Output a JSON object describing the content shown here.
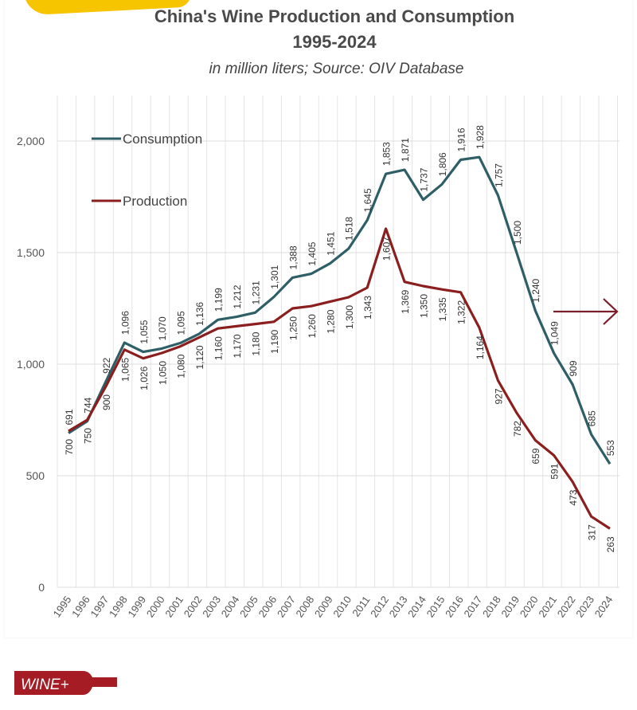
{
  "header": {
    "title_line1": "China's Wine Production and Consumption",
    "title_line2": "1995-2024",
    "subtitle": "in million liters; Source: OIV Database"
  },
  "logo": {
    "text": "WINE+",
    "color": "#a51c24"
  },
  "colors": {
    "consumption": "#2f5f66",
    "production": "#8b1f1f",
    "accent": "#f7c400",
    "arrow": "#7a1f2b"
  },
  "chart_data": {
    "type": "line",
    "title": "China's Wine Production and Consumption 1995-2024",
    "subtitle": "in million liters; Source: OIV Database",
    "xlabel": "",
    "ylabel": "",
    "ylim": [
      0,
      2000
    ],
    "yticks": [
      0,
      500,
      1000,
      1500,
      2000
    ],
    "ytick_labels": [
      "0",
      "500",
      "1,000",
      "1,500",
      "2,000"
    ],
    "grid": true,
    "legend_position": "top-left",
    "x": [
      "1995",
      "1996",
      "1997",
      "1998",
      "1999",
      "2000",
      "2001",
      "2002",
      "2003",
      "2004",
      "2005",
      "2006",
      "2007",
      "2008",
      "2009",
      "2010",
      "2011",
      "2012",
      "2013",
      "2014",
      "2015",
      "2016",
      "2017",
      "2018",
      "2019",
      "2020",
      "2021",
      "2022",
      "2023",
      "2024"
    ],
    "series": [
      {
        "name": "Consumption",
        "color": "#2f5f66",
        "values": [
          691,
          744,
          922,
          1096,
          1055,
          1070,
          1095,
          1136,
          1199,
          1212,
          1231,
          1301,
          1388,
          1405,
          1451,
          1518,
          1645,
          1853,
          1871,
          1737,
          1806,
          1916,
          1928,
          1757,
          1500,
          1240,
          1049,
          909,
          685,
          553
        ],
        "labels": [
          "691",
          "744",
          "922",
          "1,096",
          "1,055",
          "1,070",
          "1,095",
          "1,136",
          "1,199",
          "1,212",
          "1,231",
          "1,301",
          "1,388",
          "1,405",
          "1,451",
          "1,518",
          "1,645",
          "1,853",
          "1,871",
          "1,737",
          "1,806",
          "1,916",
          "1,928",
          "1,757",
          "1,500",
          "1,240",
          "1,049",
          "909",
          "685",
          "553"
        ]
      },
      {
        "name": "Production",
        "color": "#8b1f1f",
        "values": [
          700,
          750,
          900,
          1065,
          1026,
          1050,
          1080,
          1120,
          1160,
          1170,
          1180,
          1190,
          1250,
          1260,
          1280,
          1300,
          1343,
          1607,
          1369,
          1350,
          1335,
          1322,
          1164,
          927,
          782,
          659,
          591,
          473,
          317,
          263
        ],
        "labels": [
          "700",
          "750",
          "900",
          "1,065",
          "1,026",
          "1,050",
          "1,080",
          "1,120",
          "1,160",
          "1,170",
          "1,180",
          "1,190",
          "1,250",
          "1,260",
          "1,280",
          "1,300",
          "1,343",
          "1,607",
          "1,369",
          "1,350",
          "1,335",
          "1,322",
          "1,164",
          "927",
          "782",
          "659",
          "591",
          "473",
          "317",
          "263"
        ]
      }
    ],
    "annotations": [
      {
        "type": "arrow",
        "direction": "right",
        "near_year": "2021"
      }
    ]
  }
}
